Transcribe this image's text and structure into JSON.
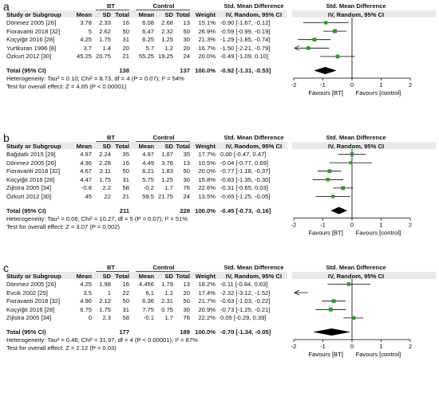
{
  "headers": {
    "bt": "BT",
    "control": "Control",
    "smd": "Std. Mean Difference",
    "study": "Study or Subgroup",
    "mean": "Mean",
    "sd": "SD",
    "total": "Total",
    "weight": "Weight",
    "method": "IV, Random, 95% CI",
    "favours_left": "Favours [BT]",
    "favours_right": "Favours [control]"
  },
  "chart_data": [
    {
      "type": "forest",
      "panel_label": "a",
      "studies": [
        {
          "name": "Dönmez 2005 [26]",
          "bt_mean": "3.78",
          "bt_sd": "2.33",
          "bt_total": "16",
          "c_mean": "6.08",
          "c_sd": "2.68",
          "c_total": "13",
          "weight": "15.1%",
          "ci_text": "-0.90 [-1.67, -0.12]",
          "smd": -0.9,
          "lo": -1.67,
          "hi": -0.12,
          "w": 15.1
        },
        {
          "name": "Fioravanti 2018 [32]",
          "bt_mean": "5",
          "bt_sd": "2.62",
          "bt_total": "50",
          "c_mean": "6.47",
          "c_sd": "2.32",
          "c_total": "50",
          "weight": "26.9%",
          "ci_text": "-0.59 [-0.99, -0.19]",
          "smd": -0.59,
          "lo": -0.99,
          "hi": -0.19,
          "w": 26.9
        },
        {
          "name": "Koçyiğit 2016 [28]",
          "bt_mean": "4.25",
          "bt_sd": "1.75",
          "bt_total": "31",
          "c_mean": "6.25",
          "c_sd": "1.25",
          "c_total": "30",
          "weight": "21.3%",
          "ci_text": "-1.29 [-1.85, -0.74]",
          "smd": -1.29,
          "lo": -1.85,
          "hi": -0.74,
          "w": 21.3
        },
        {
          "name": "Yurtkuran 1996 [8]",
          "bt_mean": "3.7",
          "bt_sd": "1.4",
          "bt_total": "20",
          "c_mean": "5.7",
          "c_sd": "1.2",
          "c_total": "20",
          "weight": "16.7%",
          "ci_text": "-1.50 [-2.21, -0.79]",
          "smd": -1.5,
          "lo": -2.21,
          "hi": -0.79,
          "w": 16.7
        },
        {
          "name": "Özkurt 2012 [30]",
          "bt_mean": "45.25",
          "bt_sd": "20.75",
          "bt_total": "21",
          "c_mean": "55.25",
          "c_sd": "19.25",
          "c_total": "24",
          "weight": "20.0%",
          "ci_text": "-0.49 [-1.09, 0.10]",
          "smd": -0.49,
          "lo": -1.09,
          "hi": 0.1,
          "w": 20.0
        }
      ],
      "total": {
        "label": "Total (95% CI)",
        "bt_total": "138",
        "c_total": "137",
        "weight": "100.0%",
        "ci_text": "-0.92 [-1.31, -0.53]",
        "smd": -0.92,
        "lo": -1.31,
        "hi": -0.53
      },
      "heterogeneity": "Heterogeneity: Tau² = 0.10; Chi² = 8.73, df = 4 (P = 0.07); I² = 54%",
      "overall": "Test for overall effect: Z = 4.65 (P < 0.00001)",
      "xlim": [
        -2,
        2
      ],
      "xticks": [
        "-2",
        "-1",
        "0",
        "1",
        "2"
      ]
    },
    {
      "type": "forest",
      "panel_label": "b",
      "studies": [
        {
          "name": "Bağdatlı 2015 [29]",
          "bt_mean": "4.97",
          "bt_sd": "2.24",
          "bt_total": "35",
          "c_mean": "4.97",
          "c_sd": "1.87",
          "c_total": "35",
          "weight": "17.7%",
          "ci_text": "0.00 [-0.47, 0.47]",
          "smd": 0.0,
          "lo": -0.47,
          "hi": 0.47,
          "w": 17.7
        },
        {
          "name": "Dönmez 2005 [26]",
          "bt_mean": "4.36",
          "bt_sd": "2.28",
          "bt_total": "16",
          "c_mean": "4.49",
          "c_sd": "3.76",
          "c_total": "13",
          "weight": "10.5%",
          "ci_text": "-0.04 [-0.77, 0.69]",
          "smd": -0.04,
          "lo": -0.77,
          "hi": 0.69,
          "w": 10.5
        },
        {
          "name": "Fioravanti 2018 [32]",
          "bt_mean": "4.67",
          "bt_sd": "2.11",
          "bt_total": "50",
          "c_mean": "6.21",
          "c_sd": "1.83",
          "c_total": "50",
          "weight": "20.0%",
          "ci_text": "-0.77 [-1.18, -0.37]",
          "smd": -0.77,
          "lo": -1.18,
          "hi": -0.37,
          "w": 20.0
        },
        {
          "name": "Koçyiğit 2016 [28]",
          "bt_mean": "4.47",
          "bt_sd": "1.75",
          "bt_total": "31",
          "c_mean": "5.75",
          "c_sd": "1.25",
          "c_total": "30",
          "weight": "15.8%",
          "ci_text": "-0.83 [-1.35, -0.30]",
          "smd": -0.83,
          "lo": -1.35,
          "hi": -0.3,
          "w": 15.8
        },
        {
          "name": "Zijlstra 2005 [34]",
          "bt_mean": "-0.8",
          "bt_sd": "2.2",
          "bt_total": "58",
          "c_mean": "-0.2",
          "c_sd": "1.7",
          "c_total": "76",
          "weight": "22.6%",
          "ci_text": "-0.31 [-0.65, 0.03]",
          "smd": -0.31,
          "lo": -0.65,
          "hi": 0.03,
          "w": 22.6
        },
        {
          "name": "Özkurt 2012 [30]",
          "bt_mean": "45",
          "bt_sd": "22",
          "bt_total": "21",
          "c_mean": "59.5",
          "c_sd": "21.75",
          "c_total": "24",
          "weight": "13.5%",
          "ci_text": "-0.65 [-1.25, -0.05]",
          "smd": -0.65,
          "lo": -1.25,
          "hi": -0.05,
          "w": 13.5
        }
      ],
      "total": {
        "label": "Total (95% CI)",
        "bt_total": "211",
        "c_total": "228",
        "weight": "100.0%",
        "ci_text": "-0.45 [-0.73, -0.16]",
        "smd": -0.45,
        "lo": -0.73,
        "hi": -0.16
      },
      "heterogeneity": "Heterogeneity: Tau² = 0.06; Chi² = 10.27, df = 5 (P = 0.07); I² = 51%",
      "overall": "Test for overall effect: Z = 3.07 (P = 0.002)",
      "xlim": [
        -2,
        2
      ],
      "xticks": [
        "-2",
        "-1",
        "0",
        "1",
        "2"
      ]
    },
    {
      "type": "forest",
      "panel_label": "c",
      "studies": [
        {
          "name": "Dönmez 2005 [26]",
          "bt_mean": "4.25",
          "bt_sd": "1.98",
          "bt_total": "16",
          "c_mean": "4.456",
          "c_sd": "1.79",
          "c_total": "13",
          "weight": "18.2%",
          "ci_text": "-0.11 [-0.84, 0.63]",
          "smd": -0.11,
          "lo": -0.84,
          "hi": 0.63,
          "w": 18.2
        },
        {
          "name": "Evcik 2002 [25]",
          "bt_mean": "3.5",
          "bt_sd": "1",
          "bt_total": "22",
          "c_mean": "6.1",
          "c_sd": "1.2",
          "c_total": "20",
          "weight": "17.4%",
          "ci_text": "-2.32 [-3.12, -1.52]",
          "smd": -2.32,
          "lo": -3.12,
          "hi": -1.52,
          "w": 17.4
        },
        {
          "name": "Fioravanti 2018 [32]",
          "bt_mean": "4.96",
          "bt_sd": "2.12",
          "bt_total": "50",
          "c_mean": "6.36",
          "c_sd": "2.31",
          "c_total": "50",
          "weight": "21.7%",
          "ci_text": "-0.63 [-1.03, -0.22]",
          "smd": -0.63,
          "lo": -1.03,
          "hi": -0.22,
          "w": 21.7
        },
        {
          "name": "Koçyiğit 2016 [28]",
          "bt_mean": "6.75",
          "bt_sd": "1.75",
          "bt_total": "31",
          "c_mean": "7.75",
          "c_sd": "0.75",
          "c_total": "30",
          "weight": "20.9%",
          "ci_text": "-0.73 [-1.25, -0.21]",
          "smd": -0.73,
          "lo": -1.25,
          "hi": -0.21,
          "w": 20.9
        },
        {
          "name": "Zijlstra 2005 [34]",
          "bt_mean": "0",
          "bt_sd": "2.3",
          "bt_total": "58",
          "c_mean": "-0.1",
          "c_sd": "1.7",
          "c_total": "76",
          "weight": "22.2%",
          "ci_text": "0.05 [-0.29, 0.39]",
          "smd": 0.05,
          "lo": -0.29,
          "hi": 0.39,
          "w": 22.2
        }
      ],
      "total": {
        "label": "Total (95% CI)",
        "bt_total": "177",
        "c_total": "189",
        "weight": "100.0%",
        "ci_text": "-0.70 [-1.34, -0.05]",
        "smd": -0.7,
        "lo": -1.34,
        "hi": -0.05
      },
      "heterogeneity": "Heterogeneity: Tau² = 0.46; Chi² = 31.97, df = 4 (P < 0.00001); I² = 87%",
      "overall": "Test for overall effect: Z = 2.12 (P = 0.03)",
      "xlim": [
        -2,
        2
      ],
      "xticks": [
        "-2",
        "-1",
        "0",
        "1",
        "2"
      ]
    }
  ],
  "colors": {
    "marker": "#1aa31a",
    "line": "#000000",
    "header_bg": "#e9e9e9"
  }
}
